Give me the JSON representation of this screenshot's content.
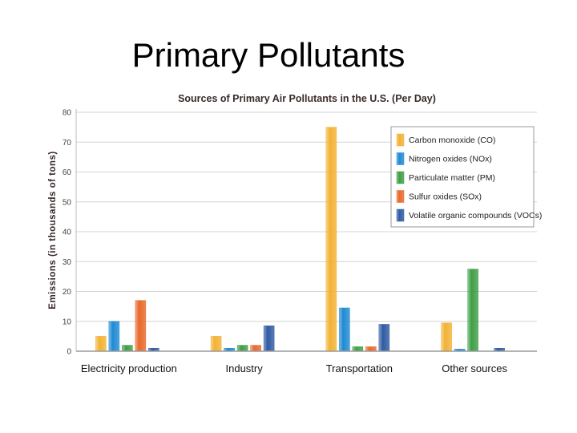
{
  "slide": {
    "title": "Primary Pollutants"
  },
  "chart_data": {
    "type": "bar",
    "title": "Sources of Primary Air Pollutants in the U.S. (Per Day)",
    "xlabel": "",
    "ylabel": "Emissions (in thousands of tons)",
    "ylim": [
      0,
      80
    ],
    "yticks": [
      0,
      10,
      20,
      30,
      40,
      50,
      60,
      70,
      80
    ],
    "grid": true,
    "legend_position": "top-right",
    "categories": [
      "Electricity production",
      "Industry",
      "Transportation",
      "Other sources"
    ],
    "series": [
      {
        "name": "Carbon monoxide (CO)",
        "color": "#f2b233",
        "values": [
          5,
          5,
          75,
          9.5
        ]
      },
      {
        "name": "Nitrogen oxides (NOx)",
        "color": "#1f8ad4",
        "values": [
          10,
          1,
          14.5,
          0.7
        ]
      },
      {
        "name": "Particulate matter (PM)",
        "color": "#3f9e45",
        "values": [
          2,
          2,
          1.5,
          27.5
        ]
      },
      {
        "name": "Sulfur oxides (SOx)",
        "color": "#e8682a",
        "values": [
          17,
          2,
          1.5,
          0
        ]
      },
      {
        "name": "Volatile organic compounds (VOCs)",
        "color": "#2f5aa3",
        "values": [
          1,
          8.5,
          9,
          1
        ]
      }
    ]
  }
}
